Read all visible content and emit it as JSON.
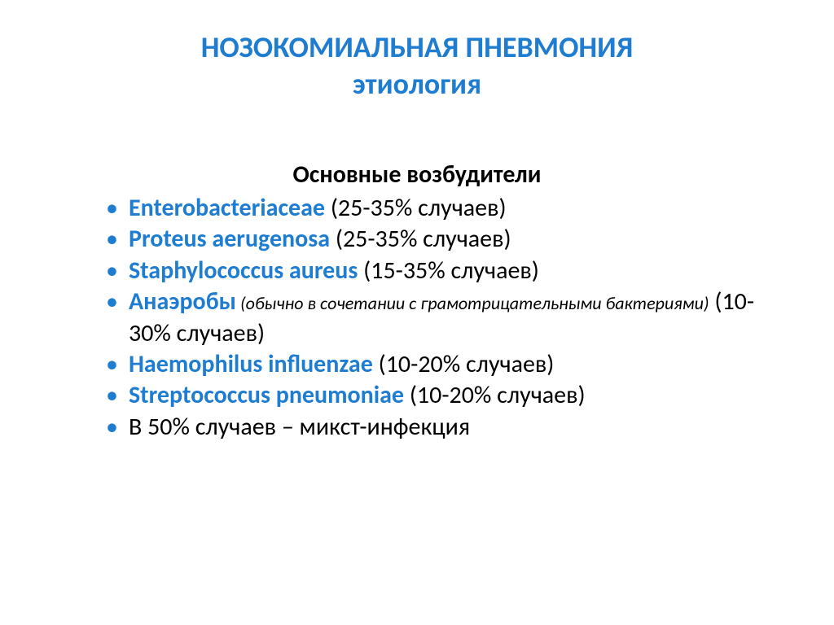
{
  "colors": {
    "accent": "#1f7dd1",
    "text": "#000000",
    "background": "#ffffff"
  },
  "typography": {
    "title_fontsize": 36,
    "body_fontsize": 30,
    "note_fontsize": 22,
    "font_family": "Calibri"
  },
  "title": {
    "line1": "НОЗОКОМИАЛЬНАЯ ПНЕВМОНИЯ",
    "line2": "этиология"
  },
  "subheading": "Основные возбудители",
  "items": [
    {
      "name": "Enterobacteriaceae",
      "note": "",
      "suffix": " (25-35% случаев)"
    },
    {
      "name": "Proteus aerugenosa",
      "note": "",
      "suffix": " (25-35% случаев)"
    },
    {
      "name": "Staphylococcus aureus",
      "note": "",
      "suffix": " (15-35% случаев)"
    },
    {
      "name": "Анаэробы",
      "note": " (обычно в сочетании с грамотрицательными бактериями)",
      "suffix": " (10-30% случаев)"
    },
    {
      "name": "Haemophilus influenzae",
      "note": "",
      "suffix": " (10-20% случаев)"
    },
    {
      "name": "Streptococcus pneumoniae",
      "note": "",
      "suffix": " (10-20% случаев)"
    }
  ],
  "final_line": "В 50% случаев – микст-инфекция"
}
